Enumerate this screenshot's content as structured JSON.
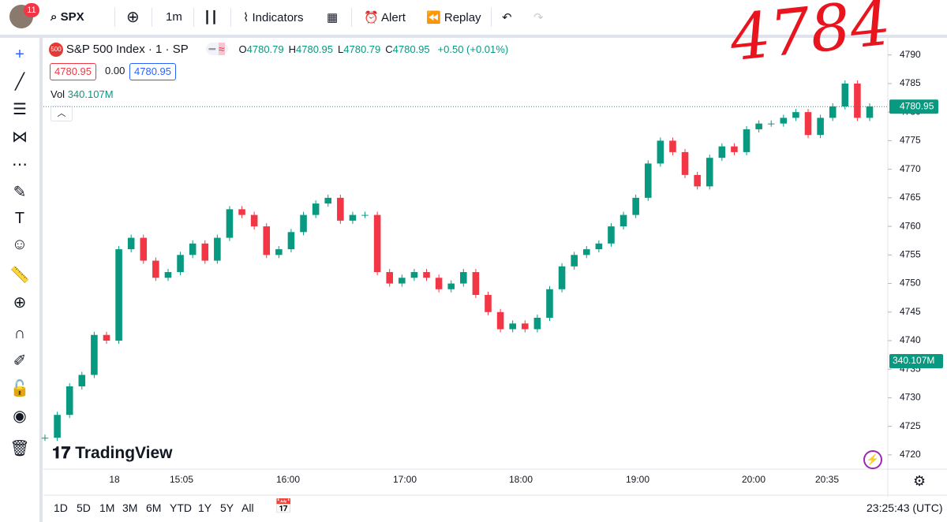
{
  "header": {
    "badge": "11",
    "symbol": "SPX",
    "interval": "1m",
    "indicators": "Indicators",
    "alert": "Alert",
    "replay": "Replay"
  },
  "legend": {
    "exchange_icon": "500",
    "title": "S&P 500 Index · 1 · SP",
    "ohlc": [
      {
        "label": "O",
        "value": "4780.79"
      },
      {
        "label": "H",
        "value": "4780.95"
      },
      {
        "label": "L",
        "value": "4780.79"
      },
      {
        "label": "C",
        "value": "4780.95"
      }
    ],
    "change": "+0.50 (+0.01%)",
    "sell": "4780.95",
    "spread": "0.00",
    "buy": "4780.95",
    "vol_label": "Vol",
    "vol_value": "340.107M"
  },
  "annotation": "4784",
  "logo": "TradingView",
  "chart_data": {
    "type": "candlestick",
    "up_color": "#089981",
    "down_color": "#f23645",
    "values": [
      4723,
      4727,
      4732,
      4734,
      4741,
      4740,
      4756,
      4758,
      4754,
      4751,
      4752,
      4755,
      4757,
      4754,
      4758,
      4763,
      4762,
      4760,
      4755,
      4756,
      4759,
      4762,
      4764,
      4765,
      4761,
      4762,
      4762,
      4752,
      4750,
      4751,
      4752,
      4751,
      4749,
      4750,
      4752,
      4748,
      4745,
      4742,
      4743,
      4742,
      4744,
      4749,
      4753,
      4755,
      4756,
      4757,
      4760,
      4762,
      4765,
      4771,
      4775,
      4773,
      4769,
      4767,
      4772,
      4774,
      4773,
      4777,
      4778,
      4778,
      4779,
      4780,
      4776,
      4779,
      4781,
      4785,
      4779,
      4781
    ],
    "ylim": [
      4717.5,
      4793
    ],
    "yticks": [
      4720,
      4725,
      4730,
      4735,
      4740,
      4745,
      4750,
      4755,
      4760,
      4765,
      4770,
      4775,
      4780,
      4785,
      4790
    ],
    "last_price": 4780.95,
    "last_price_label": "4780.95",
    "volume_label": "340.107M",
    "time_labels": [
      "18",
      "15:05",
      "16:00",
      "17:00",
      "18:00",
      "19:00",
      "20:00",
      "20:35"
    ]
  },
  "footer": {
    "ranges": [
      "1D",
      "5D",
      "1M",
      "3M",
      "6M",
      "YTD",
      "1Y",
      "5Y",
      "All"
    ],
    "clock": "23:25:43 (UTC)"
  }
}
